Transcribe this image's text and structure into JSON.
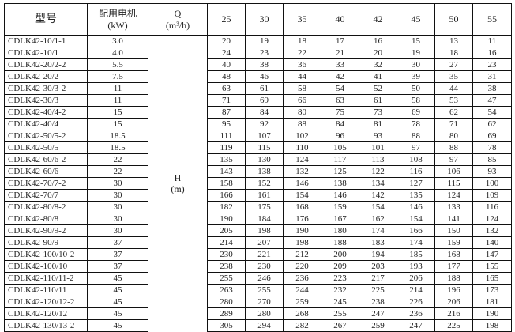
{
  "header": {
    "model": "型号",
    "motor": "配用电机",
    "motor_unit": "(kW)",
    "q": "Q",
    "q_unit": "(m³/h)",
    "flows": [
      "25",
      "30",
      "35",
      "40",
      "42",
      "45",
      "50",
      "55"
    ]
  },
  "head_label": "H",
  "head_unit": "(m)",
  "rows": [
    [
      "CDLK42-10/1-1",
      "3.0",
      "20",
      "19",
      "18",
      "17",
      "16",
      "15",
      "13",
      "11"
    ],
    [
      "CDLK42-10/1",
      "4.0",
      "24",
      "23",
      "22",
      "21",
      "20",
      "19",
      "18",
      "16"
    ],
    [
      "CDLK42-20/2-2",
      "5.5",
      "40",
      "38",
      "36",
      "33",
      "32",
      "30",
      "27",
      "23"
    ],
    [
      "CDLK42-20/2",
      "7.5",
      "48",
      "46",
      "44",
      "42",
      "41",
      "39",
      "35",
      "31"
    ],
    [
      "CDLK42-30/3-2",
      "11",
      "63",
      "61",
      "58",
      "54",
      "52",
      "50",
      "44",
      "38"
    ],
    [
      "CDLK42-30/3",
      "11",
      "71",
      "69",
      "66",
      "63",
      "61",
      "58",
      "53",
      "47"
    ],
    [
      "CDLK42-40/4-2",
      "15",
      "87",
      "84",
      "80",
      "75",
      "73",
      "69",
      "62",
      "54"
    ],
    [
      "CDLK42-40/4",
      "15",
      "95",
      "92",
      "88",
      "84",
      "81",
      "78",
      "71",
      "62"
    ],
    [
      "CDLK42-50/5-2",
      "18.5",
      "111",
      "107",
      "102",
      "96",
      "93",
      "88",
      "80",
      "69"
    ],
    [
      "CDLK42-50/5",
      "18.5",
      "119",
      "115",
      "110",
      "105",
      "101",
      "97",
      "88",
      "78"
    ],
    [
      "CDLK42-60/6-2",
      "22",
      "135",
      "130",
      "124",
      "117",
      "113",
      "108",
      "97",
      "85"
    ],
    [
      "CDLK42-60/6",
      "22",
      "143",
      "138",
      "132",
      "125",
      "122",
      "116",
      "106",
      "93"
    ],
    [
      "CDLK42-70/7-2",
      "30",
      "158",
      "152",
      "146",
      "138",
      "134",
      "127",
      "115",
      "100"
    ],
    [
      "CDLK42-70/7",
      "30",
      "166",
      "161",
      "154",
      "146",
      "142",
      "135",
      "124",
      "109"
    ],
    [
      "CDLK42-80/8-2",
      "30",
      "182",
      "175",
      "168",
      "159",
      "154",
      "146",
      "133",
      "116"
    ],
    [
      "CDLK42-80/8",
      "30",
      "190",
      "184",
      "176",
      "167",
      "162",
      "154",
      "141",
      "124"
    ],
    [
      "CDLK42-90/9-2",
      "30",
      "205",
      "198",
      "190",
      "180",
      "174",
      "166",
      "150",
      "132"
    ],
    [
      "CDLK42-90/9",
      "37",
      "214",
      "207",
      "198",
      "188",
      "183",
      "174",
      "159",
      "140"
    ],
    [
      "CDLK42-100/10-2",
      "37",
      "230",
      "221",
      "212",
      "200",
      "194",
      "185",
      "168",
      "147"
    ],
    [
      "CDLK42-100/10",
      "37",
      "238",
      "230",
      "220",
      "209",
      "203",
      "193",
      "177",
      "155"
    ],
    [
      "CDLK42-110/11-2",
      "45",
      "255",
      "246",
      "236",
      "223",
      "217",
      "206",
      "188",
      "165"
    ],
    [
      "CDLK42-110/11",
      "45",
      "263",
      "255",
      "244",
      "232",
      "225",
      "214",
      "196",
      "173"
    ],
    [
      "CDLK42-120/12-2",
      "45",
      "280",
      "270",
      "259",
      "245",
      "238",
      "226",
      "206",
      "181"
    ],
    [
      "CDLK42-120/12",
      "45",
      "289",
      "280",
      "268",
      "255",
      "247",
      "236",
      "216",
      "190"
    ],
    [
      "CDLK42-130/13-2",
      "45",
      "305",
      "294",
      "282",
      "267",
      "259",
      "247",
      "225",
      "198"
    ]
  ]
}
